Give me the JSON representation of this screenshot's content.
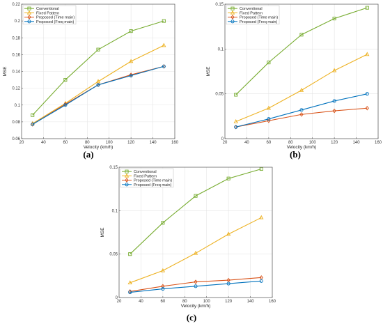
{
  "figure": {
    "captions": [
      "(a)",
      "(b)",
      "(c)"
    ]
  },
  "chart_data": [
    {
      "type": "line",
      "caption": "(a)",
      "xlabel": "Velocity (km/h)",
      "ylabel": "MSE",
      "xlim": [
        20,
        160
      ],
      "ylim": [
        0.06,
        0.22
      ],
      "xticks": [
        20,
        40,
        60,
        80,
        100,
        120,
        140,
        160
      ],
      "yticks": [
        0.06,
        0.08,
        0.1,
        0.12,
        0.14,
        0.16,
        0.18,
        0.2,
        0.22
      ],
      "ytick_labels": [
        "0.06",
        "0.08",
        "0.1",
        "0.12",
        "0.14",
        "0.16",
        "0.18",
        "0.2",
        "0.22"
      ],
      "grid": true,
      "legend_position": "top-left",
      "x": [
        30,
        60,
        90,
        120,
        150
      ],
      "series": [
        {
          "name": "Conventional",
          "color": "#77AC30",
          "marker": "square",
          "values": [
            0.088,
            0.13,
            0.166,
            0.188,
            0.2
          ]
        },
        {
          "name": "Fixed Pattern",
          "color": "#EDB120",
          "marker": "triangle",
          "values": [
            0.078,
            0.102,
            0.128,
            0.152,
            0.171
          ]
        },
        {
          "name": "Proposed (Time main)",
          "color": "#D95319",
          "marker": "diamond",
          "values": [
            0.077,
            0.101,
            0.124,
            0.136,
            0.146
          ]
        },
        {
          "name": "Proposed (Freq main)",
          "color": "#0072BD",
          "marker": "circle",
          "values": [
            0.077,
            0.1,
            0.124,
            0.135,
            0.146
          ]
        }
      ]
    },
    {
      "type": "line",
      "caption": "(b)",
      "xlabel": "Velocity (km/h)",
      "ylabel": "MSE",
      "xlim": [
        20,
        160
      ],
      "ylim": [
        0,
        0.15
      ],
      "xticks": [
        20,
        40,
        60,
        80,
        100,
        120,
        140,
        160
      ],
      "yticks": [
        0,
        0.05,
        0.1,
        0.15
      ],
      "ytick_labels": [
        "0",
        "0.05",
        "0.1",
        "0.15"
      ],
      "grid": true,
      "legend_position": "top-left",
      "x": [
        30,
        60,
        90,
        120,
        150
      ],
      "series": [
        {
          "name": "Conventional",
          "color": "#77AC30",
          "marker": "square",
          "values": [
            0.049,
            0.085,
            0.116,
            0.134,
            0.146
          ]
        },
        {
          "name": "Fixed Pattern",
          "color": "#EDB120",
          "marker": "triangle",
          "values": [
            0.019,
            0.034,
            0.054,
            0.076,
            0.094
          ]
        },
        {
          "name": "Proposed (Time main)",
          "color": "#D95319",
          "marker": "diamond",
          "values": [
            0.013,
            0.02,
            0.027,
            0.031,
            0.034
          ]
        },
        {
          "name": "Proposed (Freq main)",
          "color": "#0072BD",
          "marker": "circle",
          "values": [
            0.013,
            0.022,
            0.032,
            0.042,
            0.05
          ]
        }
      ]
    },
    {
      "type": "line",
      "caption": "(c)",
      "xlabel": "Velocity (km/h)",
      "ylabel": "MSE",
      "xlim": [
        20,
        160
      ],
      "ylim": [
        0,
        0.15
      ],
      "xticks": [
        20,
        40,
        60,
        80,
        100,
        120,
        140,
        160
      ],
      "yticks": [
        0,
        0.05,
        0.1,
        0.15
      ],
      "ytick_labels": [
        "0",
        "0.05",
        "0.1",
        "0.15"
      ],
      "grid": true,
      "legend_position": "top-left",
      "x": [
        30,
        60,
        90,
        120,
        150
      ],
      "series": [
        {
          "name": "Conventional",
          "color": "#77AC30",
          "marker": "square",
          "values": [
            0.05,
            0.086,
            0.117,
            0.137,
            0.148
          ]
        },
        {
          "name": "Fixed Pattern",
          "color": "#EDB120",
          "marker": "triangle",
          "values": [
            0.017,
            0.031,
            0.051,
            0.073,
            0.092
          ]
        },
        {
          "name": "Proposed (Time main)",
          "color": "#D95319",
          "marker": "diamond",
          "values": [
            0.007,
            0.013,
            0.018,
            0.02,
            0.023
          ]
        },
        {
          "name": "Proposed (Freq main)",
          "color": "#0072BD",
          "marker": "circle",
          "values": [
            0.006,
            0.01,
            0.013,
            0.016,
            0.019
          ]
        }
      ]
    }
  ]
}
